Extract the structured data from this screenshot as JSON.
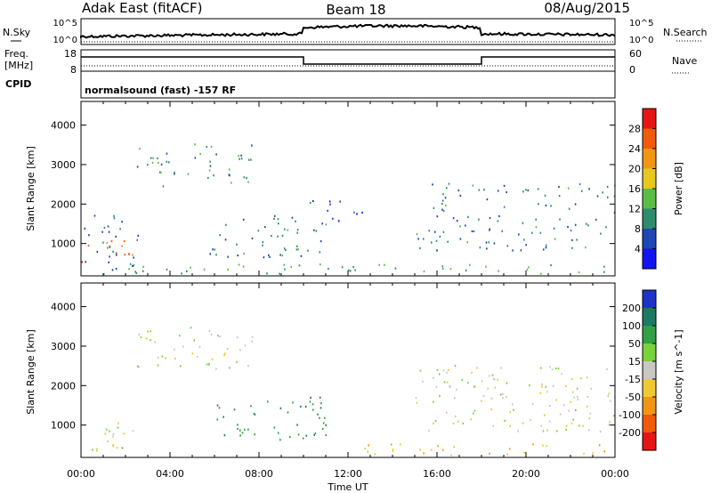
{
  "header": {
    "station": "Adak East (fitACF)",
    "beam": "Beam 18",
    "date": "08/Aug/2015"
  },
  "panels": {
    "nsky": {
      "left_label": "N.Sky",
      "left_ticks": [
        "10^5",
        "10^0"
      ],
      "right_label": "N.Search",
      "right_ticks": [
        "10^5",
        "10^0"
      ]
    },
    "freq": {
      "left_label_line1": "Freq.",
      "left_label_line2": "[MHz]",
      "left_ticks": [
        "18",
        "8"
      ],
      "right_label": "Nave",
      "right_ticks": [
        "60",
        "0"
      ]
    },
    "cpid": {
      "label": "CPID",
      "text": "normalsound (fast) -157 RF"
    }
  },
  "chart_data": [
    {
      "type": "heatmap",
      "name": "power",
      "xlabel": "",
      "ylabel": "Slant Range [km]",
      "x_ticks": [
        "00:00",
        "04:00",
        "08:00",
        "12:00",
        "16:00",
        "20:00",
        "00:00"
      ],
      "x_tick_hours": [
        0,
        4,
        8,
        12,
        16,
        20,
        24
      ],
      "y_ticks": [
        1000,
        2000,
        3000,
        4000
      ],
      "ylim": [
        180,
        4600
      ],
      "xlim_hours": [
        0,
        24
      ],
      "colorbar": {
        "label": "Power [dB]",
        "ticks": [
          "4",
          "8",
          "12",
          "16",
          "20",
          "24",
          "28"
        ],
        "levels": [
          0,
          4,
          8,
          12,
          16,
          20,
          24,
          28,
          30
        ],
        "colors": [
          "#1414f0",
          "#1e46b4",
          "#2d8c6e",
          "#5abe46",
          "#e6c81e",
          "#f09614",
          "#f05a0a",
          "#e61414"
        ]
      },
      "regions": [
        {
          "t0": 0.0,
          "t1": 2.3,
          "r0": 450,
          "r1": 1050,
          "val": 26
        },
        {
          "t0": 0.0,
          "t1": 2.6,
          "r0": 300,
          "r1": 1800,
          "val": 8
        },
        {
          "t0": 2.5,
          "t1": 7.7,
          "r0": 2400,
          "r1": 3500,
          "val": 10
        },
        {
          "t0": 5.7,
          "t1": 11.0,
          "r0": 600,
          "r1": 1700,
          "val": 9
        },
        {
          "t0": 10.2,
          "t1": 12.8,
          "r0": 1500,
          "r1": 2100,
          "val": 6
        },
        {
          "t0": 15.0,
          "t1": 24.0,
          "r0": 800,
          "r1": 2500,
          "val": 9
        },
        {
          "t0": 0.0,
          "t1": 24.0,
          "r0": 200,
          "r1": 450,
          "val": 12
        }
      ]
    },
    {
      "type": "heatmap",
      "name": "velocity",
      "xlabel": "Time UT",
      "ylabel": "Slant Range [km]",
      "x_ticks": [
        "00:00",
        "04:00",
        "08:00",
        "12:00",
        "16:00",
        "20:00",
        "00:00"
      ],
      "x_tick_hours": [
        0,
        4,
        8,
        12,
        16,
        20,
        24
      ],
      "y_ticks": [
        1000,
        2000,
        3000,
        4000
      ],
      "ylim": [
        180,
        4600
      ],
      "xlim_hours": [
        0,
        24
      ],
      "colorbar": {
        "label": "Velocity [m s^-1]",
        "ticks": [
          "200",
          "100",
          "50",
          "15",
          "-15",
          "-50",
          "-100",
          "-200"
        ],
        "colors": [
          "#1e32c8",
          "#1e7864",
          "#32a046",
          "#78d23c",
          "#c8c8c0",
          "#f0c832",
          "#f09614",
          "#f05a0a",
          "#e61414"
        ]
      },
      "regions": [
        {
          "t0": 0.0,
          "t1": 2.6,
          "r0": 300,
          "r1": 1100,
          "val": 0
        },
        {
          "t0": 2.5,
          "t1": 7.7,
          "r0": 2400,
          "r1": 3500,
          "val": 0
        },
        {
          "t0": 5.7,
          "t1": 11.0,
          "r0": 600,
          "r1": 1700,
          "val": 60
        },
        {
          "t0": 15.0,
          "t1": 24.0,
          "r0": 800,
          "r1": 2500,
          "val": 0
        },
        {
          "t0": 12.0,
          "t1": 24.0,
          "r0": 200,
          "r1": 500,
          "val": -40
        }
      ]
    }
  ]
}
